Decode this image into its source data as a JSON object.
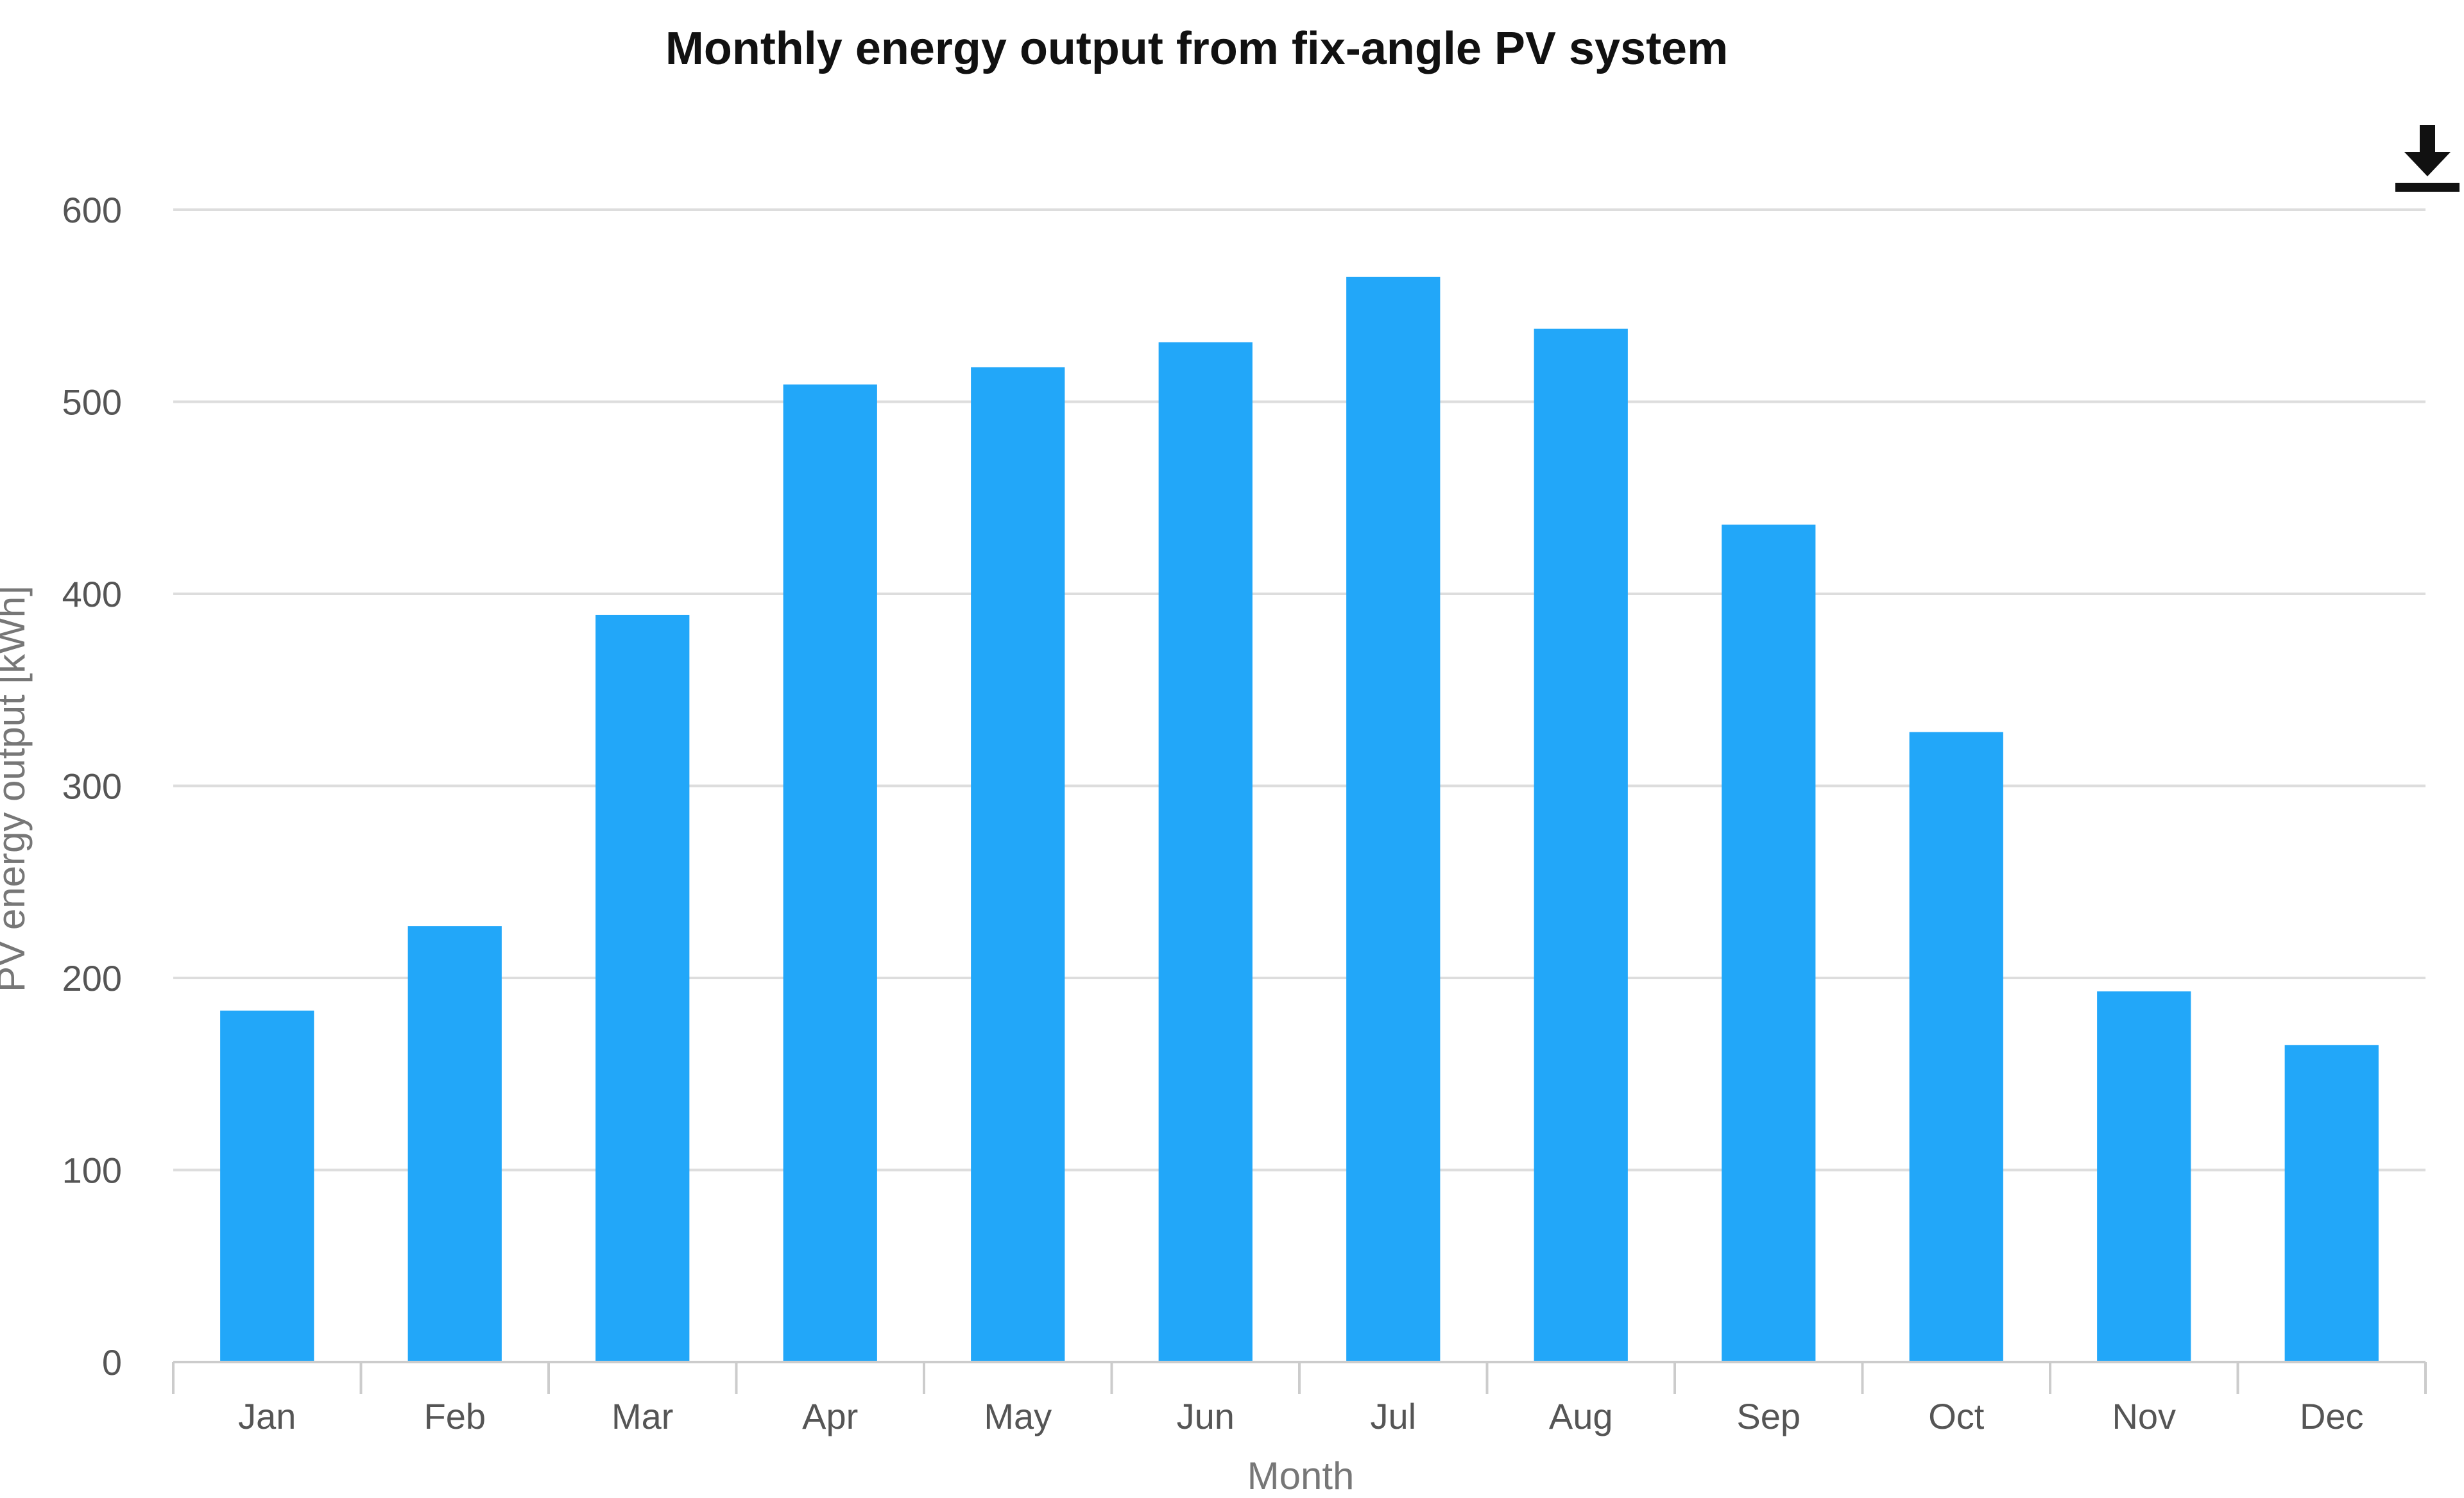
{
  "chart_data": {
    "type": "bar",
    "title": "Monthly energy output from fix-angle PV system",
    "xlabel": "Month",
    "ylabel": "PV energy output [kWh]",
    "categories": [
      "Jan",
      "Feb",
      "Mar",
      "Apr",
      "May",
      "Jun",
      "Jul",
      "Aug",
      "Sep",
      "Oct",
      "Nov",
      "Dec"
    ],
    "values": [
      183,
      227,
      389,
      509,
      518,
      531,
      565,
      538,
      436,
      328,
      193,
      165
    ],
    "yticks": [
      0,
      100,
      200,
      300,
      400,
      500,
      600
    ],
    "ylim": [
      0,
      600
    ],
    "grid": true,
    "bar_color": "#22a7f9"
  },
  "toolbar": {
    "download_icon": "download-icon"
  }
}
